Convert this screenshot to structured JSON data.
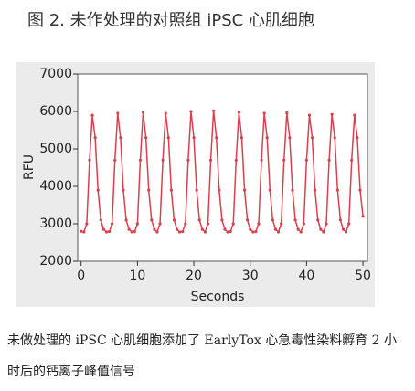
{
  "chart_data": {
    "type": "line",
    "title": "图 2. 未作处理的对照组 iPSC 心肌细胞",
    "x_label": "Seconds",
    "y_label": "RFU",
    "xlim": [
      -0.6,
      50.8
    ],
    "ylim": [
      2000,
      7000
    ],
    "xticks": [
      0,
      10,
      20,
      30,
      40,
      50
    ],
    "yticks": [
      2000,
      3000,
      4000,
      5000,
      6000,
      7000
    ],
    "series": [
      {
        "color": "#d9404f",
        "x": [
          0,
          0.5,
          1,
          1.5,
          2,
          2.5,
          3,
          3.5,
          4,
          4.5,
          5,
          5.5,
          6,
          6.5,
          7,
          7.5,
          8,
          8.5,
          9,
          9.5,
          10,
          10.5,
          11,
          11.5,
          12,
          12.5,
          13,
          13.5,
          14,
          14.5,
          15,
          15.5,
          16,
          16.5,
          17,
          17.5,
          18,
          18.5,
          19,
          19.5,
          20,
          20.5,
          21,
          21.5,
          22,
          22.5,
          23,
          23.5,
          24,
          24.5,
          25,
          25.5,
          26,
          26.5,
          27,
          27.5,
          28,
          28.5,
          29,
          29.5,
          30,
          30.5,
          31,
          31.5,
          32,
          32.5,
          33,
          33.5,
          34,
          34.5,
          35,
          35.5,
          36,
          36.5,
          37,
          37.5,
          38,
          38.5,
          39,
          39.5,
          40,
          40.5,
          41,
          41.5,
          42,
          42.5,
          43,
          43.5,
          44,
          44.5,
          45,
          45.5,
          46,
          46.5,
          47,
          47.5,
          48,
          48.5,
          49,
          49.5,
          50
        ],
        "values": [
          2800,
          2780,
          3000,
          4700,
          5900,
          5300,
          3900,
          3100,
          2850,
          2780,
          2790,
          3000,
          4700,
          5950,
          5300,
          3900,
          3100,
          2850,
          2780,
          2790,
          3000,
          4700,
          5980,
          5300,
          3900,
          3100,
          2850,
          2780,
          3000,
          4700,
          5950,
          5300,
          3900,
          3100,
          2850,
          2780,
          2790,
          3000,
          4700,
          6000,
          5300,
          3900,
          3100,
          2850,
          2780,
          3000,
          4700,
          6020,
          5300,
          3900,
          3100,
          2850,
          2780,
          2790,
          3000,
          4700,
          5980,
          5300,
          3900,
          3100,
          2850,
          2780,
          2790,
          3000,
          4700,
          5950,
          5300,
          3900,
          3100,
          2850,
          2780,
          3000,
          4700,
          5960,
          5300,
          3900,
          3100,
          2850,
          2780,
          3000,
          4700,
          5900,
          5300,
          3900,
          3100,
          2850,
          2780,
          3000,
          4700,
          5920,
          5300,
          3900,
          3100,
          2850,
          2780,
          3000,
          4700,
          5900,
          5300,
          3900,
          3200
        ]
      }
    ]
  },
  "caption": "未做处理的 iPSC 心肌细胞添加了 EarlyTox 心急毒性染料孵育 2 小时后的钙离子峰值信号"
}
